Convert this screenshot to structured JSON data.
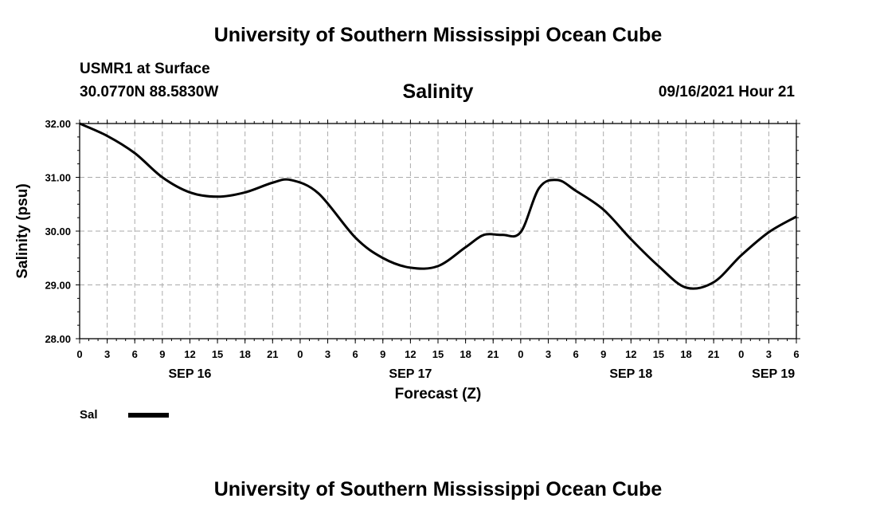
{
  "header": {
    "title": "University of Southern Mississippi Ocean Cube",
    "station": "USMR1 at Surface",
    "coords": "30.0770N  88.5830W",
    "date": "09/16/2021 Hour 21"
  },
  "footer": {
    "title": "University of Southern Mississippi Ocean Cube"
  },
  "chart_data": {
    "type": "line",
    "title": "Salinity",
    "xlabel": "Forecast (Z)",
    "ylabel": "Salinity (psu)",
    "xlim": [
      0,
      78
    ],
    "ylim": [
      28,
      32
    ],
    "grid": true,
    "yticks": [
      "28.00",
      "29.00",
      "30.00",
      "31.00",
      "32.00"
    ],
    "xtick_labels": [
      "0",
      "3",
      "6",
      "9",
      "12",
      "15",
      "18",
      "21",
      "0",
      "3",
      "6",
      "9",
      "12",
      "15",
      "18",
      "21",
      "0",
      "3",
      "6",
      "9",
      "12",
      "15",
      "18",
      "21",
      "0",
      "3",
      "6"
    ],
    "day_labels": [
      {
        "label": "SEP 16",
        "hour": 12
      },
      {
        "label": "SEP 17",
        "hour": 36
      },
      {
        "label": "SEP 18",
        "hour": 60
      },
      {
        "label": "SEP 19",
        "hour": 75.5
      }
    ],
    "legend": [
      {
        "name": "Sal",
        "color": "#000000"
      }
    ],
    "series": [
      {
        "name": "Sal",
        "color": "#000000",
        "x": [
          0,
          3,
          6,
          9,
          12,
          15,
          18,
          21,
          23,
          26,
          30,
          33,
          36,
          39,
          42,
          44,
          46,
          48,
          50,
          52,
          54,
          57,
          60,
          63,
          66,
          69,
          72,
          75,
          78
        ],
        "y": [
          32.0,
          31.77,
          31.45,
          31.0,
          30.72,
          30.64,
          30.72,
          30.9,
          30.95,
          30.7,
          29.88,
          29.5,
          29.32,
          29.35,
          29.7,
          29.93,
          29.93,
          29.98,
          30.8,
          30.95,
          30.75,
          30.4,
          29.85,
          29.35,
          28.95,
          29.05,
          29.55,
          29.98,
          30.27
        ]
      }
    ]
  }
}
